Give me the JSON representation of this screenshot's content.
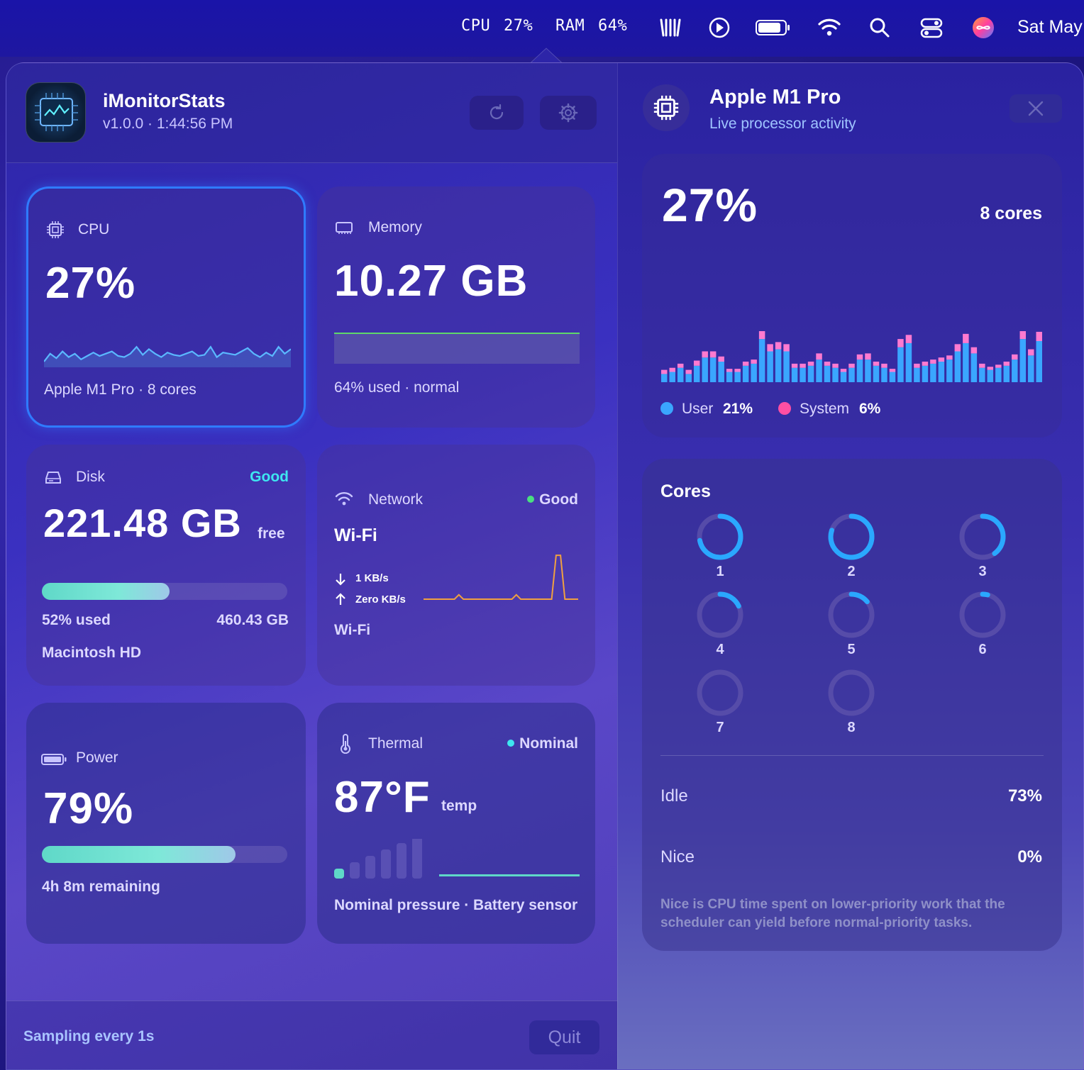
{
  "menubar": {
    "cpu_label": "CPU",
    "cpu_value": "27%",
    "ram_label": "RAM",
    "ram_value": "64%",
    "clock": "Sat May",
    "icons": [
      "sparkle-icon",
      "play-icon",
      "battery-icon",
      "wifi-icon",
      "search-icon",
      "control-center-icon",
      "siri-icon"
    ]
  },
  "header": {
    "title": "iMonitorStats",
    "version": "v1.0.0 · 1:44:56 PM",
    "refresh_icon": "refresh-icon",
    "settings_icon": "gear-icon"
  },
  "cpu": {
    "label": "CPU",
    "value": "27%",
    "footer": "Apple M1 Pro · 8 cores",
    "spark": [
      5,
      12,
      8,
      14,
      9,
      12,
      7,
      10,
      13,
      10,
      12,
      14,
      10,
      9,
      12,
      18,
      11,
      16,
      12,
      9,
      13,
      11,
      10,
      12,
      14,
      10,
      11,
      18,
      9,
      13,
      12,
      11,
      14,
      17,
      12,
      9,
      13,
      10,
      18,
      12,
      16
    ]
  },
  "memory": {
    "label": "Memory",
    "value": "10.27 GB",
    "footer": "64% used · normal",
    "used_fraction": 0.64
  },
  "disk": {
    "label": "Disk",
    "status": "Good",
    "value": "221.48 GB",
    "unit": "free",
    "used_label": "52% used",
    "total": "460.43 GB",
    "volume": "Macintosh HD",
    "used_fraction": 0.52
  },
  "network": {
    "label": "Network",
    "status": "Good",
    "type": "Wi-Fi",
    "down": "1 KB/s",
    "up": "Zero KB/s",
    "footer": "Wi-Fi",
    "spark": [
      0,
      0,
      0,
      0,
      0,
      0,
      0,
      0,
      3,
      0,
      0,
      0,
      0,
      0,
      0,
      0,
      0,
      0,
      0,
      0,
      0,
      3,
      0,
      0,
      0,
      0,
      0,
      0,
      0,
      0,
      30,
      30,
      0,
      0,
      0,
      0
    ]
  },
  "power": {
    "label": "Power",
    "value": "79%",
    "footer": "4h 8m remaining",
    "fraction": 0.79
  },
  "thermal": {
    "label": "Thermal",
    "status": "Nominal",
    "value": "87°F",
    "unit": "temp",
    "footer": "Nominal pressure · Battery sensor",
    "level": 1
  },
  "detail": {
    "title": "Apple M1 Pro",
    "subtitle": "Live processor activity",
    "close_icon": "close-icon",
    "value": "27%",
    "cores_label": "8 cores",
    "user_label": "User",
    "user_value": "21%",
    "system_label": "System",
    "system_value": "6%",
    "bars": [
      [
        8,
        4
      ],
      [
        10,
        4
      ],
      [
        14,
        4
      ],
      [
        8,
        4
      ],
      [
        16,
        5
      ],
      [
        24,
        6
      ],
      [
        24,
        6
      ],
      [
        20,
        5
      ],
      [
        10,
        3
      ],
      [
        10,
        3
      ],
      [
        16,
        4
      ],
      [
        18,
        4
      ],
      [
        42,
        10
      ],
      [
        30,
        7
      ],
      [
        32,
        7
      ],
      [
        30,
        7
      ],
      [
        14,
        4
      ],
      [
        14,
        4
      ],
      [
        16,
        4
      ],
      [
        22,
        6
      ],
      [
        16,
        4
      ],
      [
        14,
        4
      ],
      [
        10,
        3
      ],
      [
        14,
        4
      ],
      [
        22,
        5
      ],
      [
        22,
        6
      ],
      [
        16,
        4
      ],
      [
        14,
        4
      ],
      [
        10,
        3
      ],
      [
        34,
        8
      ],
      [
        38,
        8
      ],
      [
        14,
        4
      ],
      [
        16,
        4
      ],
      [
        18,
        4
      ],
      [
        20,
        4
      ],
      [
        22,
        4
      ],
      [
        30,
        7
      ],
      [
        38,
        9
      ],
      [
        28,
        6
      ],
      [
        14,
        4
      ],
      [
        12,
        3
      ],
      [
        14,
        3
      ],
      [
        16,
        4
      ],
      [
        22,
        5
      ],
      [
        42,
        10
      ],
      [
        26,
        6
      ],
      [
        40,
        9
      ]
    ],
    "cores_title": "Cores",
    "cores": [
      {
        "id": "1",
        "load": 0.72
      },
      {
        "id": "2",
        "load": 0.8
      },
      {
        "id": "3",
        "load": 0.4
      },
      {
        "id": "4",
        "load": 0.18
      },
      {
        "id": "5",
        "load": 0.14
      },
      {
        "id": "6",
        "load": 0.04
      },
      {
        "id": "7",
        "load": 0
      },
      {
        "id": "8",
        "load": 0
      }
    ],
    "idle_label": "Idle",
    "idle_value": "73%",
    "nice_label": "Nice",
    "nice_value": "0%",
    "note": "Nice is CPU time spent on lower-priority work that the scheduler can yield before normal-priority tasks."
  },
  "footer": {
    "sampling": "Sampling every 1s",
    "quit": "Quit"
  },
  "colors": {
    "accent": "#3aa6ff",
    "teal": "#5fd8c8",
    "pink": "#ff4fa3",
    "good": "#4ade80",
    "cyan": "#3ee6f0",
    "orange": "#f0a040"
  }
}
